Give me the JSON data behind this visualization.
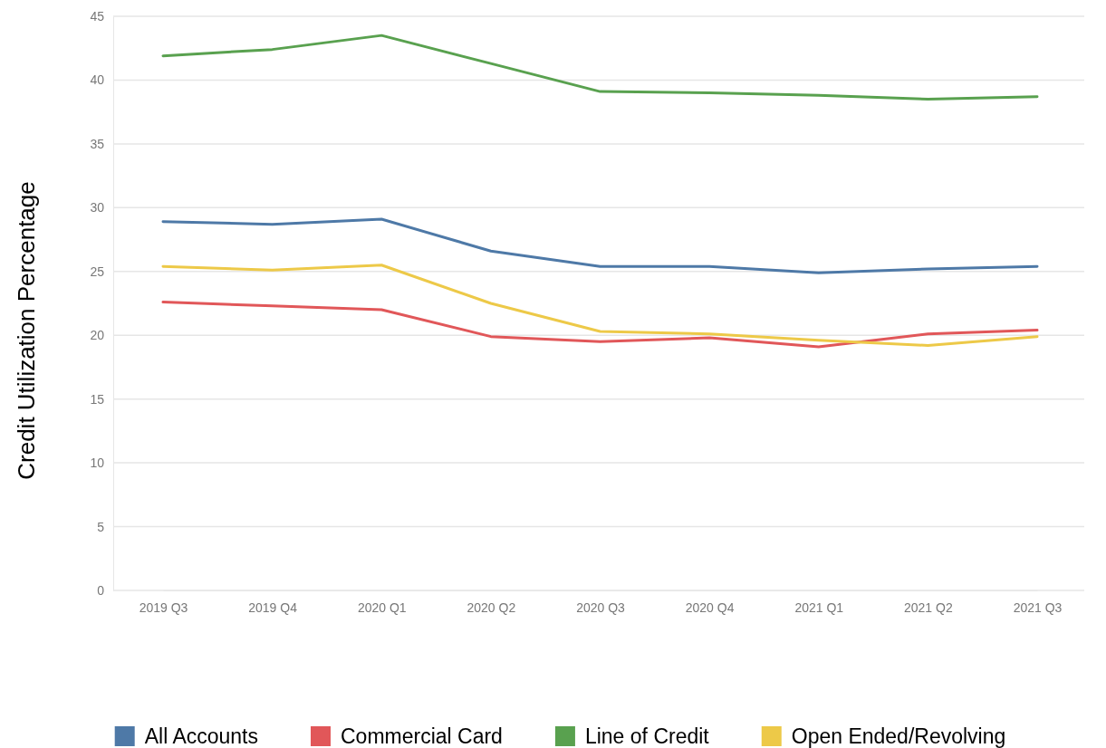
{
  "chart_data": {
    "type": "line",
    "ylabel": "Credit Utilization Percentage",
    "categories": [
      "2019 Q3",
      "2019 Q4",
      "2020 Q1",
      "2020 Q2",
      "2020 Q3",
      "2020 Q4",
      "2021 Q1",
      "2021 Q2",
      "2021 Q3"
    ],
    "series": [
      {
        "name": "All Accounts",
        "color": "#4e79a7",
        "values": [
          28.9,
          28.7,
          29.1,
          26.6,
          25.4,
          25.4,
          24.9,
          25.2,
          25.4
        ]
      },
      {
        "name": "Commercial Card",
        "color": "#e15759",
        "values": [
          22.6,
          22.3,
          22.0,
          19.9,
          19.5,
          19.8,
          19.1,
          20.1,
          20.4
        ]
      },
      {
        "name": "Line of Credit",
        "color": "#59a14f",
        "values": [
          41.9,
          42.4,
          43.5,
          41.3,
          39.1,
          39.0,
          38.8,
          38.5,
          38.7
        ]
      },
      {
        "name": "Open Ended/Revolving",
        "color": "#edc948",
        "values": [
          25.4,
          25.1,
          25.5,
          22.5,
          20.3,
          20.1,
          19.6,
          19.2,
          19.9
        ]
      }
    ],
    "ylim": [
      0,
      45
    ],
    "yticks": [
      0,
      5,
      10,
      15,
      20,
      25,
      30,
      35,
      40,
      45
    ],
    "grid": "y",
    "legend": "bottom",
    "marker": "none",
    "line_style": "solid"
  }
}
